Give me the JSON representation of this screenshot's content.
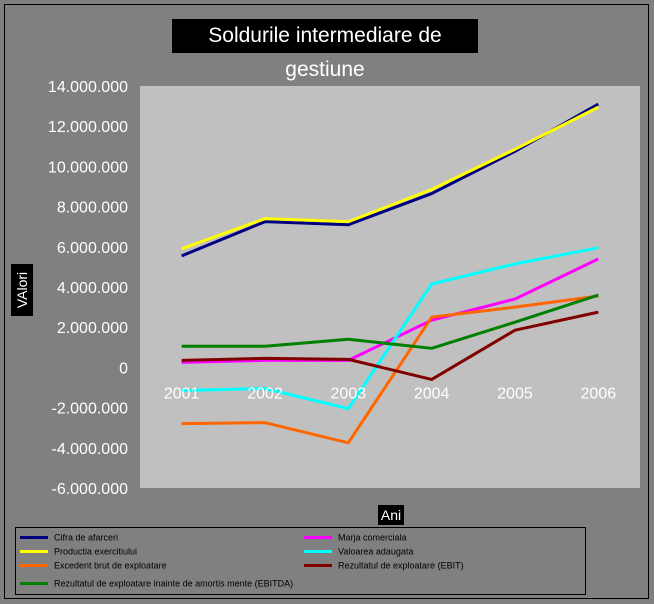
{
  "chart_data": {
    "type": "line",
    "title": "Soldurile intermediare de gestiune",
    "xlabel": "Ani",
    "ylabel": "VAlori",
    "categories": [
      "2001",
      "2002",
      "2003",
      "2004",
      "2005",
      "2006"
    ],
    "ylim": [
      -6000000,
      14000000
    ],
    "yticks": [
      14000000,
      12000000,
      10000000,
      8000000,
      6000000,
      4000000,
      2000000,
      0,
      -2000000,
      -4000000,
      -6000000
    ],
    "ytick_labels": [
      "14.000.000",
      "12.000.000",
      "10.000.000",
      "8.000.000",
      "6.000.000",
      "4.000.000",
      "2.000.000",
      "0",
      "-2.000.000",
      "-4.000.000",
      "-6.000.000"
    ],
    "grid": false,
    "legend_position": "bottom",
    "series": [
      {
        "name": "Cifra de afarceri",
        "color": "#000080",
        "values": [
          5550000,
          7250000,
          7100000,
          8650000,
          10750000,
          13100000
        ]
      },
      {
        "name": "Marja comerciala",
        "color": "#FF00FF",
        "values": [
          250000,
          350000,
          350000,
          2350000,
          3400000,
          5400000
        ]
      },
      {
        "name": "Productia exercitiului",
        "color": "#FFFF00",
        "values": [
          5900000,
          7400000,
          7250000,
          8850000,
          10850000,
          12950000
        ]
      },
      {
        "name": "Valoarea adaugata",
        "color": "#00FFFF",
        "values": [
          -1150000,
          -1050000,
          -2050000,
          4150000,
          5150000,
          5950000
        ]
      },
      {
        "name": "Excedent brut de exploatare",
        "color": "#FF6600",
        "values": [
          -2800000,
          -2750000,
          -3750000,
          2500000,
          3000000,
          3550000
        ]
      },
      {
        "name": "Rezultatul de exploatare (EBIT)",
        "color": "#800000",
        "values": [
          350000,
          450000,
          400000,
          -600000,
          1850000,
          2750000
        ]
      },
      {
        "name": "Rezultatul de exploatare inainte de amortis mente (EBITDA)",
        "color": "#008000",
        "values": [
          1050000,
          1050000,
          1400000,
          950000,
          2250000,
          3600000
        ]
      }
    ]
  }
}
